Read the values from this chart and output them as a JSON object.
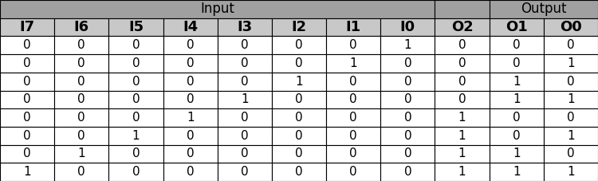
{
  "header_row1_labels": [
    "Input",
    "",
    "Output"
  ],
  "header_row1_spans": [
    8,
    1,
    2
  ],
  "header_row2": [
    "I7",
    "I6",
    "I5",
    "I4",
    "I3",
    "I2",
    "I1",
    "I0",
    "O2",
    "O1",
    "O0"
  ],
  "rows": [
    [
      "0",
      "0",
      "0",
      "0",
      "0",
      "0",
      "0",
      "1",
      "0",
      "0",
      "0"
    ],
    [
      "0",
      "0",
      "0",
      "0",
      "0",
      "0",
      "1",
      "0",
      "0",
      "0",
      "1"
    ],
    [
      "0",
      "0",
      "0",
      "0",
      "0",
      "1",
      "0",
      "0",
      "0",
      "1",
      "0"
    ],
    [
      "0",
      "0",
      "0",
      "0",
      "1",
      "0",
      "0",
      "0",
      "0",
      "1",
      "1"
    ],
    [
      "0",
      "0",
      "0",
      "1",
      "0",
      "0",
      "0",
      "0",
      "1",
      "0",
      "0"
    ],
    [
      "0",
      "0",
      "1",
      "0",
      "0",
      "0",
      "0",
      "0",
      "1",
      "0",
      "1"
    ],
    [
      "0",
      "1",
      "0",
      "0",
      "0",
      "0",
      "0",
      "0",
      "1",
      "1",
      "0"
    ],
    [
      "1",
      "0",
      "0",
      "0",
      "0",
      "0",
      "0",
      "0",
      "1",
      "1",
      "1"
    ]
  ],
  "top_header_bg": "#a0a0a0",
  "col_header_bg": "#c8c8c8",
  "o2_top_bg": "#a0a0a0",
  "row_bg": "#ffffff",
  "border_color": "#000000",
  "text_color": "#000000",
  "font_size": 11,
  "header_font_size": 12,
  "col_header_font_size": 13,
  "n_cols": 11,
  "n_data_rows": 8,
  "fig_width": 7.5,
  "fig_height": 2.27,
  "dpi": 100
}
